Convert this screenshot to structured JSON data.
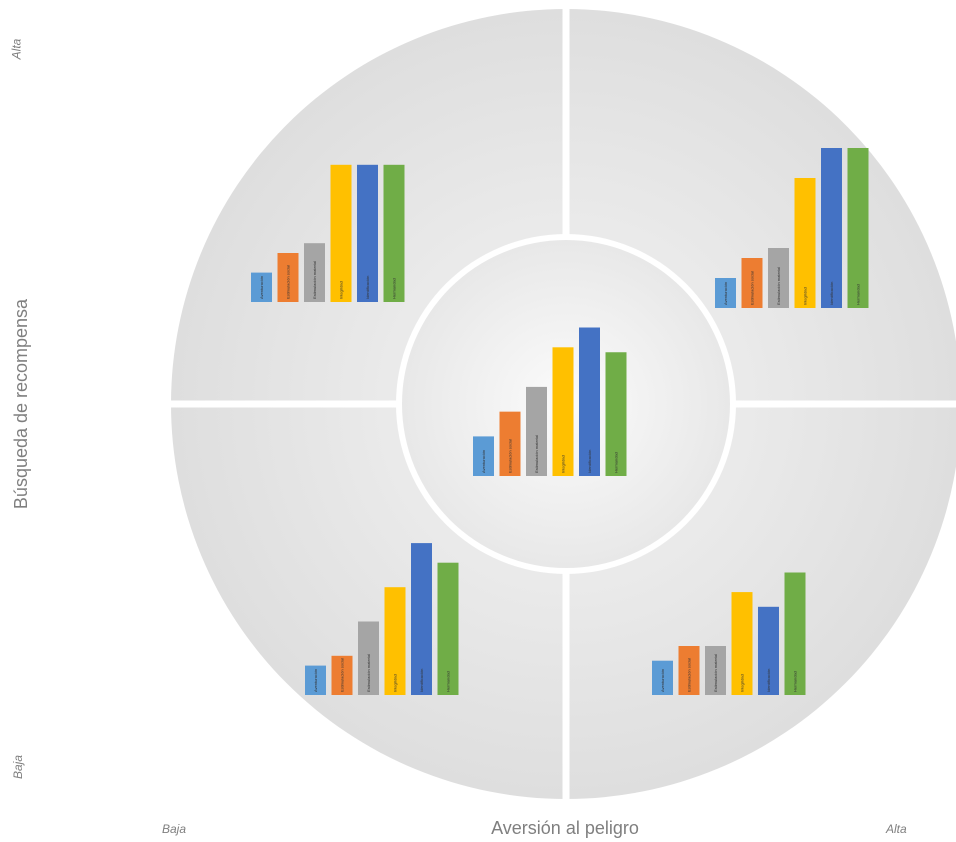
{
  "axes": {
    "x_title": "Aversión al peligro",
    "y_title": "Búsqueda de recompensa",
    "x_low": "Baja",
    "x_high": "Alta",
    "y_low": "Baja",
    "y_high": "Alta"
  },
  "colors": {
    "ring": "#e0e0e0",
    "center": "#f0f0f0",
    "separator": "#ffffff"
  },
  "series_colors": [
    "#5b9bd5",
    "#ed7d31",
    "#a5a5a5",
    "#ffc000",
    "#4472c4",
    "#70ad47"
  ],
  "chart_data": [
    {
      "type": "bar",
      "quadrant": "top-left",
      "categories": [
        "Aventuración",
        "Estimulación social",
        "Estimulación material",
        "Integridad",
        "Identificación",
        "Hermandad"
      ],
      "values": [
        3,
        5,
        6,
        14,
        14,
        14
      ]
    },
    {
      "type": "bar",
      "quadrant": "top-right",
      "categories": [
        "Aventuración",
        "Estimulación social",
        "Estimulación material",
        "Integridad",
        "Identificación",
        "Hermandad"
      ],
      "values": [
        3,
        5,
        6,
        13,
        16,
        16
      ]
    },
    {
      "type": "bar",
      "quadrant": "center",
      "categories": [
        "Aventuración",
        "Estimulación social",
        "Estimulación material",
        "Integridad",
        "Identificación",
        "Hermandad"
      ],
      "values": [
        4,
        6.5,
        9,
        13,
        15,
        12.5
      ]
    },
    {
      "type": "bar",
      "quadrant": "bottom-left",
      "categories": [
        "Aventuración",
        "Estimulación social",
        "Estimulación material",
        "Integridad",
        "Identificación",
        "Hermandad"
      ],
      "values": [
        3,
        4,
        7.5,
        11,
        15.5,
        13.5
      ]
    },
    {
      "type": "bar",
      "quadrant": "bottom-right",
      "categories": [
        "Aventuración",
        "Estimulación social",
        "Estimulación material",
        "Integridad",
        "Identificación",
        "Hermandad"
      ],
      "values": [
        3.5,
        5,
        5,
        10.5,
        9,
        12.5
      ]
    }
  ]
}
